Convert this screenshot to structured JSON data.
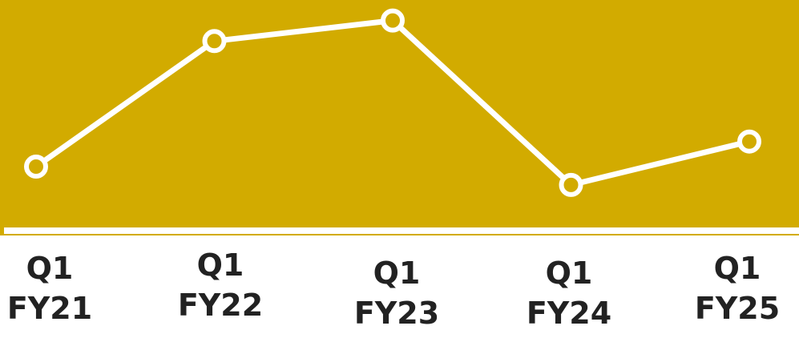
{
  "chart_data": {
    "type": "line",
    "categories": [
      "Q1 FY21",
      "Q1 FY22",
      "Q1 FY23",
      "Q1 FY24",
      "Q1 FY25"
    ],
    "series": [
      {
        "color": "#ffffff",
        "values": [
          27,
          82,
          91,
          19,
          38
        ]
      }
    ],
    "ylim": [
      0,
      100
    ],
    "background": "#d2ab00"
  }
}
